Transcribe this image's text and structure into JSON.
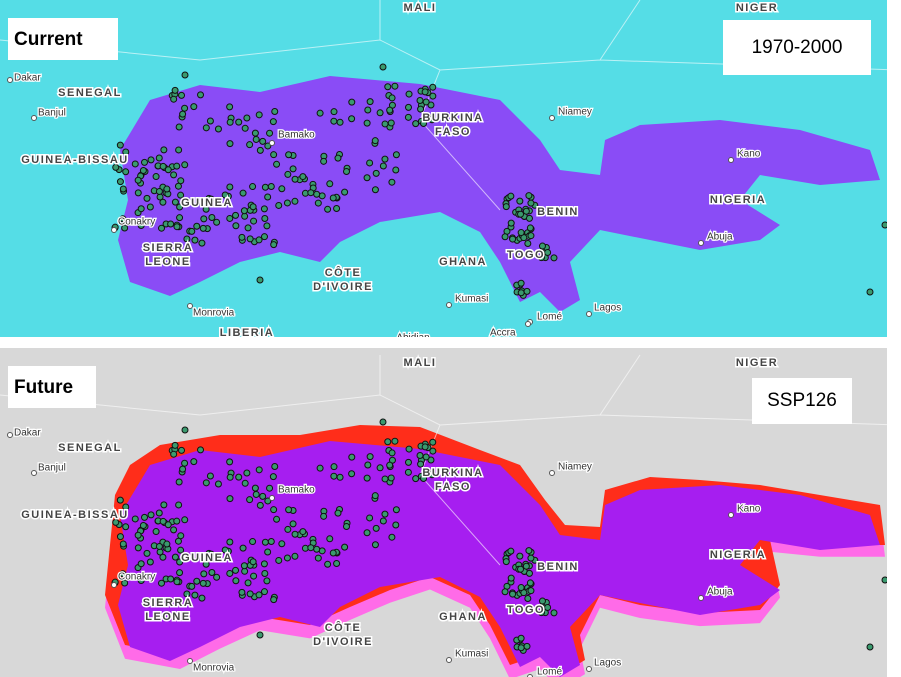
{
  "panels": [
    {
      "title": "Current",
      "scenario": "1970-2000",
      "places": [
        "MALI",
        "NIGER",
        "Dakar",
        "SENEGAL",
        "Banjul",
        "GUINEA-BISSAU",
        "Conakry",
        "GUINEA",
        [
          "SIERRA",
          "LEONE"
        ],
        "Bamako",
        [
          "BURKINA",
          "FASO"
        ],
        "Niamey",
        "Kano",
        "NIGERIA",
        "Abuja",
        "BENIN",
        "TOGO",
        "GHANA",
        [
          "CÔTE",
          "D'IVOIRE"
        ],
        "Kumasi",
        "Monrovia",
        "Lomé",
        "Lagos",
        "LIBERIA",
        "Abidjan",
        "Accra"
      ]
    },
    {
      "title": "Future",
      "scenario": "SSP126",
      "places": [
        "MALI",
        "NIGER",
        "Dakar",
        "SENEGAL",
        "Banjul",
        "GUINEA-BISSAU",
        "Conakry",
        "GUINEA",
        [
          "SIERRA",
          "LEONE"
        ],
        "Bamako",
        [
          "BURKINA",
          "FASO"
        ],
        "Niamey",
        "Kano",
        "NIGERIA",
        "Abuja",
        "BENIN",
        "TOGO",
        "GHANA",
        [
          "CÔTE",
          "D'IVOIRE"
        ],
        "Kumasi",
        "Monrovia",
        "Lomé",
        "Lagos"
      ]
    }
  ]
}
